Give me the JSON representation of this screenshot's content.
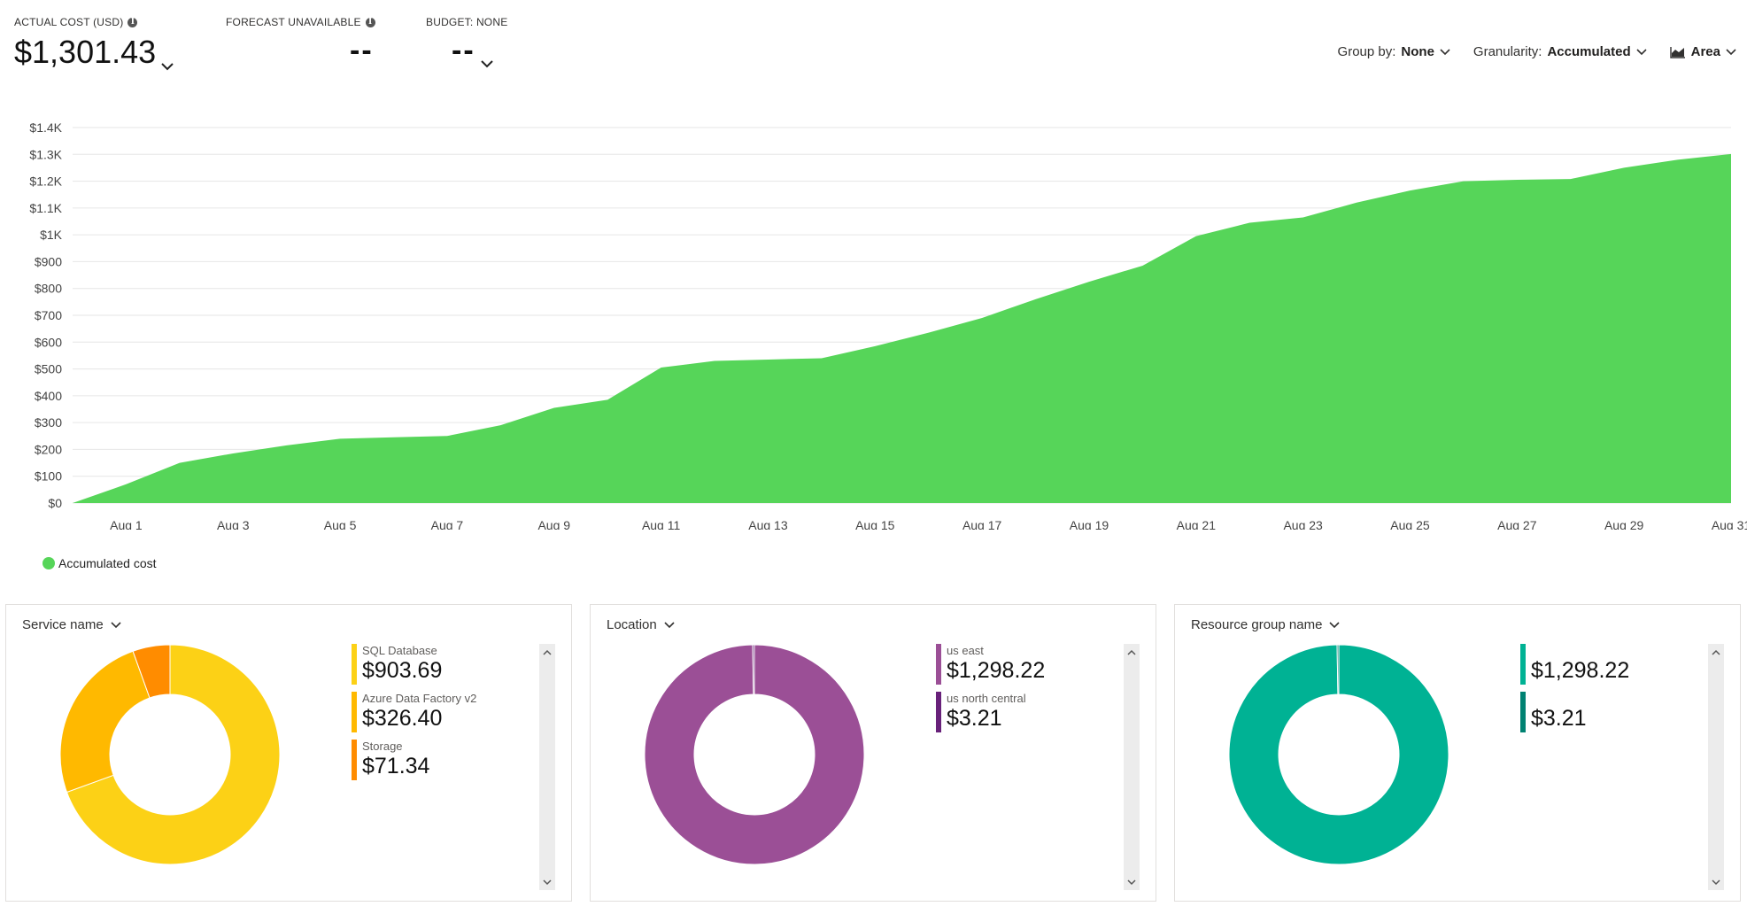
{
  "kpis": {
    "actual": {
      "label": "ACTUAL COST (USD)",
      "value": "$1,301.43"
    },
    "forecast": {
      "label": "FORECAST UNAVAILABLE",
      "value": "--"
    },
    "budget": {
      "label": "BUDGET: NONE",
      "value": "--"
    }
  },
  "toolbar": {
    "group_by": {
      "label": "Group by:",
      "value": "None"
    },
    "granularity": {
      "label": "Granularity:",
      "value": "Accumulated"
    },
    "view": {
      "label": "Area"
    }
  },
  "colors": {
    "area": "#56d559",
    "sql": "#fcd116",
    "adf": "#ffb900",
    "storage": "#ff8c00",
    "us_east": "#9b4f96",
    "us_north_central": "#68217a",
    "rg1": "#00b294",
    "rg2": "#008272",
    "grid": "#e6e6e6"
  },
  "chart_data": {
    "type": "area",
    "title": "",
    "xlabel": "",
    "ylabel": "",
    "ylim": [
      0,
      1400
    ],
    "yticks": [
      0,
      100,
      200,
      300,
      400,
      500,
      600,
      700,
      800,
      900,
      1000,
      1100,
      1200,
      1300,
      1400
    ],
    "ytick_labels": [
      "$0",
      "$100",
      "$200",
      "$300",
      "$400",
      "$500",
      "$600",
      "$700",
      "$800",
      "$900",
      "$1K",
      "$1.1K",
      "$1.2K",
      "$1.3K",
      "$1.4K"
    ],
    "x": [
      0,
      1,
      2,
      3,
      4,
      5,
      6,
      7,
      8,
      9,
      10,
      11,
      12,
      13,
      14,
      15,
      16,
      17,
      18,
      19,
      20,
      21,
      22,
      23,
      24,
      25,
      26,
      27,
      28,
      29,
      30,
      31
    ],
    "xtick_positions": [
      1,
      3,
      5,
      7,
      9,
      11,
      13,
      15,
      17,
      19,
      21,
      23,
      25,
      27,
      29,
      31
    ],
    "xtick_labels": [
      "Aug 1",
      "Aug 3",
      "Aug 5",
      "Aug 7",
      "Aug 9",
      "Aug 11",
      "Aug 13",
      "Aug 15",
      "Aug 17",
      "Aug 19",
      "Aug 21",
      "Aug 23",
      "Aug 25",
      "Aug 27",
      "Aug 29",
      "Aug 31"
    ],
    "series": [
      {
        "name": "Accumulated cost",
        "values": [
          0,
          70,
          150,
          185,
          215,
          240,
          245,
          250,
          290,
          355,
          385,
          505,
          530,
          535,
          540,
          585,
          635,
          690,
          760,
          825,
          885,
          995,
          1045,
          1065,
          1120,
          1165,
          1200,
          1205,
          1208,
          1250,
          1280,
          1301.43
        ]
      }
    ],
    "legend": [
      "Accumulated cost"
    ]
  },
  "cards": [
    {
      "title": "Service name",
      "segments": [
        {
          "name": "SQL Database",
          "value": 903.69,
          "label": "$903.69",
          "color": "#fcd116"
        },
        {
          "name": "Azure Data Factory v2",
          "value": 326.4,
          "label": "$326.40",
          "color": "#ffb900"
        },
        {
          "name": "Storage",
          "value": 71.34,
          "label": "$71.34",
          "color": "#ff8c00"
        }
      ]
    },
    {
      "title": "Location",
      "segments": [
        {
          "name": "us east",
          "value": 1298.22,
          "label": "$1,298.22",
          "color": "#9b4f96"
        },
        {
          "name": "us north central",
          "value": 3.21,
          "label": "$3.21",
          "color": "#68217a"
        }
      ]
    },
    {
      "title": "Resource group name",
      "segments": [
        {
          "name": "",
          "value": 1298.22,
          "label": "$1,298.22",
          "color": "#00b294"
        },
        {
          "name": "",
          "value": 3.21,
          "label": "$3.21",
          "color": "#008272"
        }
      ]
    }
  ]
}
